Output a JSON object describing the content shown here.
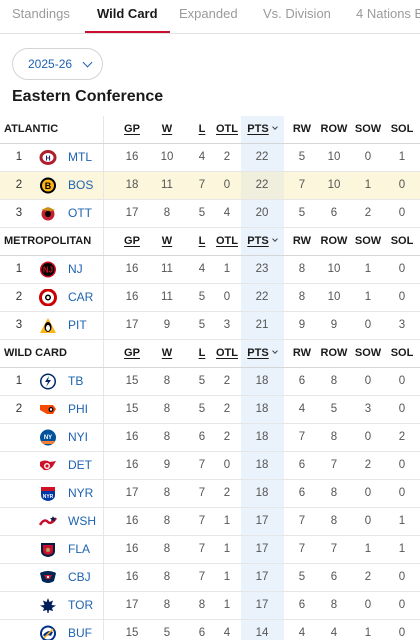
{
  "tabs": [
    "Standings",
    "Wild Card",
    "Expanded",
    "Vs. Division",
    "4 Nations B"
  ],
  "active_tab": 1,
  "season": "2025-26",
  "conference": "Eastern Conference",
  "columns": [
    "GP",
    "W",
    "L",
    "OTL",
    "PTS",
    "RW",
    "ROW",
    "SOW",
    "SOL"
  ],
  "colors": {
    "accent": "#c8102e",
    "link": "#1d63b0",
    "pts_column": "#eaf2fb",
    "highlight_row": "#fbf6dc"
  },
  "sections": [
    {
      "name": "ATLANTIC",
      "teams": [
        {
          "rank": "1",
          "abbr": "MTL",
          "logo": "canadiens-logo",
          "stats": [
            "16",
            "10",
            "4",
            "2",
            "22",
            "5",
            "10",
            "0",
            "1"
          ]
        },
        {
          "rank": "2",
          "abbr": "BOS",
          "logo": "bruins-logo",
          "highlight": true,
          "stats": [
            "18",
            "11",
            "7",
            "0",
            "22",
            "7",
            "10",
            "1",
            "0"
          ]
        },
        {
          "rank": "3",
          "abbr": "OTT",
          "logo": "senators-logo",
          "stats": [
            "17",
            "8",
            "5",
            "4",
            "20",
            "5",
            "6",
            "2",
            "0"
          ]
        }
      ]
    },
    {
      "name": "METROPOLITAN",
      "teams": [
        {
          "rank": "1",
          "abbr": "NJ",
          "logo": "devils-logo",
          "stats": [
            "16",
            "11",
            "4",
            "1",
            "23",
            "8",
            "10",
            "1",
            "0"
          ]
        },
        {
          "rank": "2",
          "abbr": "CAR",
          "logo": "hurricanes-logo",
          "stats": [
            "16",
            "11",
            "5",
            "0",
            "22",
            "8",
            "10",
            "1",
            "0"
          ]
        },
        {
          "rank": "3",
          "abbr": "PIT",
          "logo": "penguins-logo",
          "stats": [
            "17",
            "9",
            "5",
            "3",
            "21",
            "9",
            "9",
            "0",
            "3"
          ]
        }
      ]
    },
    {
      "name": "WILD CARD",
      "teams": [
        {
          "rank": "1",
          "abbr": "TB",
          "logo": "lightning-logo",
          "stats": [
            "15",
            "8",
            "5",
            "2",
            "18",
            "6",
            "8",
            "0",
            "0"
          ]
        },
        {
          "rank": "2",
          "abbr": "PHI",
          "logo": "flyers-logo",
          "stats": [
            "15",
            "8",
            "5",
            "2",
            "18",
            "4",
            "5",
            "3",
            "0"
          ]
        },
        {
          "rank": "",
          "abbr": "NYI",
          "logo": "islanders-logo",
          "stats": [
            "16",
            "8",
            "6",
            "2",
            "18",
            "7",
            "8",
            "0",
            "2"
          ]
        },
        {
          "rank": "",
          "abbr": "DET",
          "logo": "red-wings-logo",
          "stats": [
            "16",
            "9",
            "7",
            "0",
            "18",
            "6",
            "7",
            "2",
            "0"
          ]
        },
        {
          "rank": "",
          "abbr": "NYR",
          "logo": "rangers-logo",
          "stats": [
            "17",
            "8",
            "7",
            "2",
            "18",
            "6",
            "8",
            "0",
            "0"
          ]
        },
        {
          "rank": "",
          "abbr": "WSH",
          "logo": "capitals-logo",
          "stats": [
            "16",
            "8",
            "7",
            "1",
            "17",
            "7",
            "8",
            "0",
            "1"
          ]
        },
        {
          "rank": "",
          "abbr": "FLA",
          "logo": "panthers-logo",
          "stats": [
            "16",
            "8",
            "7",
            "1",
            "17",
            "7",
            "7",
            "1",
            "1"
          ]
        },
        {
          "rank": "",
          "abbr": "CBJ",
          "logo": "blue-jackets-logo",
          "stats": [
            "16",
            "8",
            "7",
            "1",
            "17",
            "5",
            "6",
            "2",
            "0"
          ]
        },
        {
          "rank": "",
          "abbr": "TOR",
          "logo": "maple-leafs-logo",
          "stats": [
            "17",
            "8",
            "8",
            "1",
            "17",
            "6",
            "8",
            "0",
            "0"
          ]
        },
        {
          "rank": "",
          "abbr": "BUF",
          "logo": "sabres-logo",
          "stats": [
            "15",
            "5",
            "6",
            "4",
            "14",
            "4",
            "4",
            "1",
            "0"
          ]
        }
      ]
    }
  ]
}
